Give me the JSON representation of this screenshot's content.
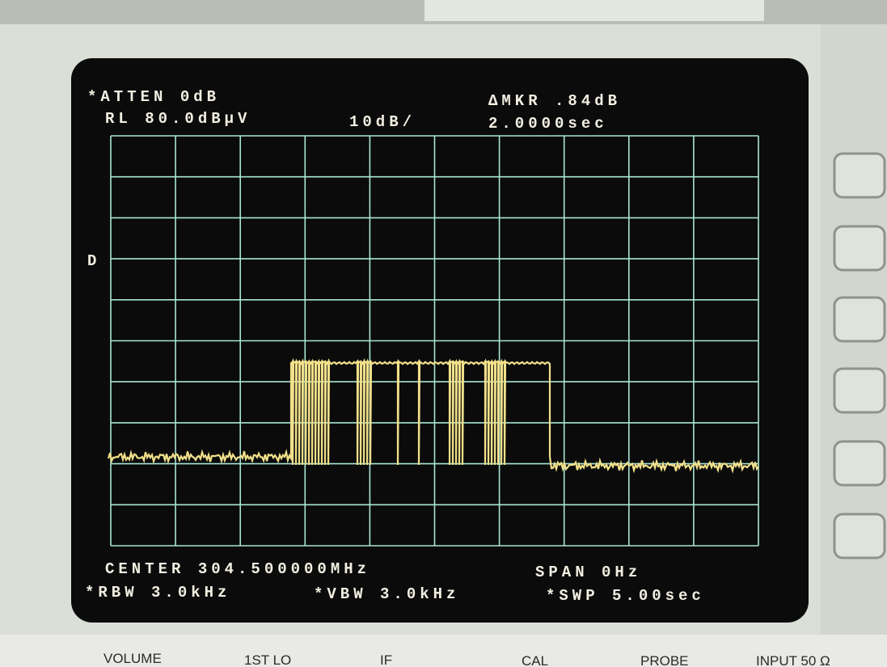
{
  "screen": {
    "atten": "*ATTEN 0dB",
    "ref_level": "RL 80.0dBµV",
    "scale": "10dB/",
    "marker_delta": "ΔMKR .84dB",
    "marker_time": "2.0000sec",
    "detector": "D",
    "center": "CENTER 304.500000MHz",
    "span": "SPAN 0Hz",
    "rbw": "*RBW 3.0kHz",
    "vbw": "*VBW 3.0kHz",
    "sweep": "*SWP 5.00sec"
  },
  "panel_labels": [
    "VOLUME",
    "1ST LO",
    "IF",
    "CAL",
    "PROBE",
    "INPUT 50 Ω"
  ]
}
